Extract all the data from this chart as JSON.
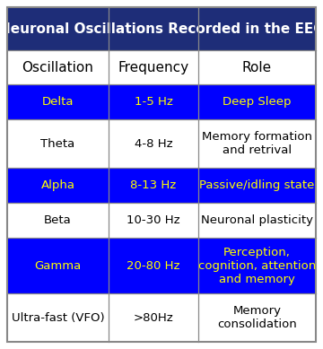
{
  "title": "Neuronal Oscillations Recorded in the EEG",
  "title_bg": "#1e2d78",
  "title_color": "#ffffff",
  "header_row": [
    "Oscillation",
    "Frequency",
    "Role"
  ],
  "header_bg": "#ffffff",
  "header_color": "#000000",
  "rows": [
    [
      "Delta",
      "1-5 Hz",
      "Deep Sleep"
    ],
    [
      "Theta",
      "4-8 Hz",
      "Memory formation\nand retrival"
    ],
    [
      "Alpha",
      "8-13 Hz",
      "Passive/idling state"
    ],
    [
      "Beta",
      "10-30 Hz",
      "Neuronal plasticity"
    ],
    [
      "Gamma",
      "20-80 Hz",
      "Perception,\ncognition, attention\nand memory"
    ],
    [
      "Ultra-fast (VFO)",
      ">80Hz",
      "Memory\nconsolidation"
    ]
  ],
  "row_backgrounds": [
    "#0000ff",
    "#ffffff",
    "#0000ff",
    "#ffffff",
    "#0000ff",
    "#ffffff"
  ],
  "row_text_colors": [
    "#ffff00",
    "#000000",
    "#ffff00",
    "#000000",
    "#ffff00",
    "#000000"
  ],
  "border_color": "#888888",
  "figsize": [
    3.6,
    3.89
  ],
  "dpi": 100
}
